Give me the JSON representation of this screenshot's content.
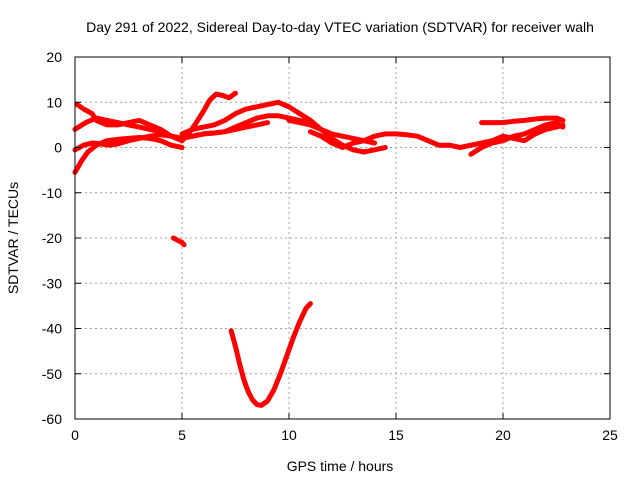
{
  "chart_data": {
    "type": "scatter",
    "title": "Day 291 of 2022, Sidereal Day-to-day VTEC variation (SDTVAR) for receiver walh",
    "xlabel": "GPS time / hours",
    "ylabel": "SDTVAR / TECUs",
    "xlim": [
      0,
      25
    ],
    "ylim": [
      -60,
      20
    ],
    "xticks": [
      0,
      5,
      10,
      15,
      20,
      25
    ],
    "yticks": [
      -60,
      -50,
      -40,
      -30,
      -20,
      -10,
      0,
      10,
      20
    ],
    "xtick_labels": [
      "0",
      "5",
      "10",
      "15",
      "20",
      "25"
    ],
    "ytick_labels": [
      "-60",
      "-50",
      "-40",
      "-30",
      "-20",
      "-10",
      "0",
      "10",
      "20"
    ],
    "grid": true,
    "color": "#ff0000",
    "series": [
      {
        "name": "track-a",
        "x": [
          0.1,
          0.4,
          0.8,
          1.0,
          1.5,
          2.0,
          2.5,
          3.0,
          3.5,
          4.0,
          4.5,
          5.0
        ],
        "y": [
          9.5,
          8.5,
          7.5,
          6.0,
          5.0,
          5.0,
          5.5,
          6.0,
          5.0,
          4.0,
          2.5,
          1.5
        ]
      },
      {
        "name": "track-b",
        "x": [
          0.0,
          0.5,
          1.0,
          1.5,
          2.0,
          2.5,
          3.0,
          3.5,
          4.0,
          4.5,
          5.0
        ],
        "y": [
          4.0,
          5.5,
          6.5,
          6.0,
          5.5,
          5.0,
          4.5,
          4.0,
          3.5,
          2.5,
          2.0
        ]
      },
      {
        "name": "track-c",
        "x": [
          0.0,
          0.3,
          0.6,
          1.0,
          1.5,
          2.0,
          2.5,
          3.0,
          3.5,
          4.0,
          4.5,
          5.0
        ],
        "y": [
          -5.5,
          -3.0,
          -1.0,
          0.5,
          1.5,
          1.8,
          2.0,
          2.2,
          2.0,
          1.5,
          0.5,
          0.0
        ]
      },
      {
        "name": "track-d",
        "x": [
          0.0,
          0.4,
          0.8,
          1.2,
          1.6,
          2.0,
          2.5,
          3.0,
          3.5,
          4.0,
          4.5,
          5.0
        ],
        "y": [
          -0.5,
          0.5,
          1.0,
          0.8,
          0.5,
          0.8,
          1.5,
          2.0,
          2.5,
          2.8,
          2.5,
          2.0
        ]
      },
      {
        "name": "track-e",
        "x": [
          5.0,
          5.3,
          5.6,
          6.0,
          6.3,
          6.6,
          6.9,
          7.2,
          7.5
        ],
        "y": [
          1.5,
          3.0,
          5.0,
          8.0,
          10.5,
          11.8,
          11.5,
          11.0,
          12.0
        ]
      },
      {
        "name": "track-f",
        "x": [
          5.0,
          5.5,
          6.0,
          6.5,
          7.0,
          7.5,
          8.0,
          8.5,
          9.0,
          9.5,
          10.0
        ],
        "y": [
          3.0,
          4.0,
          4.5,
          5.0,
          6.0,
          7.5,
          8.5,
          9.0,
          9.5,
          10.0,
          9.0
        ]
      },
      {
        "name": "track-g",
        "x": [
          5.5,
          6.0,
          6.5,
          7.0,
          7.5,
          8.0,
          8.5,
          9.0,
          9.5,
          10.0,
          10.5,
          11.0
        ],
        "y": [
          2.5,
          3.0,
          3.2,
          3.5,
          4.5,
          5.5,
          6.5,
          7.0,
          7.0,
          6.5,
          6.0,
          5.5
        ]
      },
      {
        "name": "track-h",
        "x": [
          5.0,
          5.5,
          6.0,
          6.5,
          7.0,
          7.5,
          8.0,
          8.5,
          9.0
        ],
        "y": [
          2.0,
          2.5,
          3.0,
          3.2,
          3.5,
          4.0,
          4.5,
          5.0,
          5.5
        ]
      },
      {
        "name": "track-i",
        "x": [
          10.0,
          10.5,
          11.0,
          11.5,
          12.0,
          12.5,
          13.0,
          13.5,
          14.0,
          14.5
        ],
        "y": [
          9.0,
          7.5,
          6.0,
          4.0,
          2.0,
          0.5,
          -0.5,
          -1.0,
          -0.5,
          0.0
        ]
      },
      {
        "name": "track-j",
        "x": [
          10.0,
          10.5,
          11.0,
          11.5,
          12.0,
          12.5,
          13.0,
          13.5,
          14.0
        ],
        "y": [
          6.0,
          5.5,
          5.0,
          4.0,
          3.0,
          2.5,
          2.0,
          1.5,
          1.0
        ]
      },
      {
        "name": "track-k",
        "x": [
          11.0,
          11.5,
          12.0,
          12.5,
          13.0,
          13.5,
          14.0,
          14.5,
          15.0,
          15.5,
          16.0,
          16.5,
          17.0,
          17.5,
          18.0,
          18.5,
          19.0,
          19.5,
          20.0,
          20.5,
          21.0,
          21.5,
          22.0,
          22.5,
          22.8
        ],
        "y": [
          3.5,
          2.5,
          1.0,
          0.0,
          1.0,
          1.5,
          2.5,
          3.0,
          3.0,
          2.8,
          2.5,
          1.5,
          0.5,
          0.5,
          0.0,
          0.5,
          1.0,
          1.5,
          2.5,
          2.0,
          1.5,
          3.0,
          4.0,
          4.5,
          5.0
        ]
      },
      {
        "name": "track-l",
        "x": [
          18.5,
          19.0,
          19.5,
          20.0,
          20.5,
          21.0,
          21.5,
          22.0,
          22.5,
          22.8
        ],
        "y": [
          -1.5,
          0.0,
          1.0,
          1.5,
          2.5,
          3.0,
          4.0,
          5.0,
          5.5,
          4.5
        ]
      },
      {
        "name": "track-m",
        "x": [
          19.0,
          19.5,
          20.0,
          20.5,
          21.0,
          21.5,
          22.0,
          22.5,
          22.8
        ],
        "y": [
          5.5,
          5.5,
          5.5,
          5.8,
          6.0,
          6.3,
          6.5,
          6.5,
          6.0
        ]
      },
      {
        "name": "segment-isolated",
        "x": [
          4.6,
          4.8,
          5.0,
          5.1
        ],
        "y": [
          -20.0,
          -20.5,
          -21.0,
          -21.5
        ]
      },
      {
        "name": "dip-curve",
        "x": [
          7.3,
          7.5,
          7.7,
          7.9,
          8.1,
          8.3,
          8.5,
          8.7,
          9.0,
          9.3,
          9.6,
          9.9,
          10.2,
          10.5,
          10.8,
          11.0
        ],
        "y": [
          -40.5,
          -44.0,
          -48.0,
          -51.5,
          -54.0,
          -55.8,
          -56.8,
          -57.0,
          -56.0,
          -53.5,
          -50.0,
          -46.0,
          -42.0,
          -38.5,
          -35.5,
          -34.5
        ]
      }
    ]
  }
}
